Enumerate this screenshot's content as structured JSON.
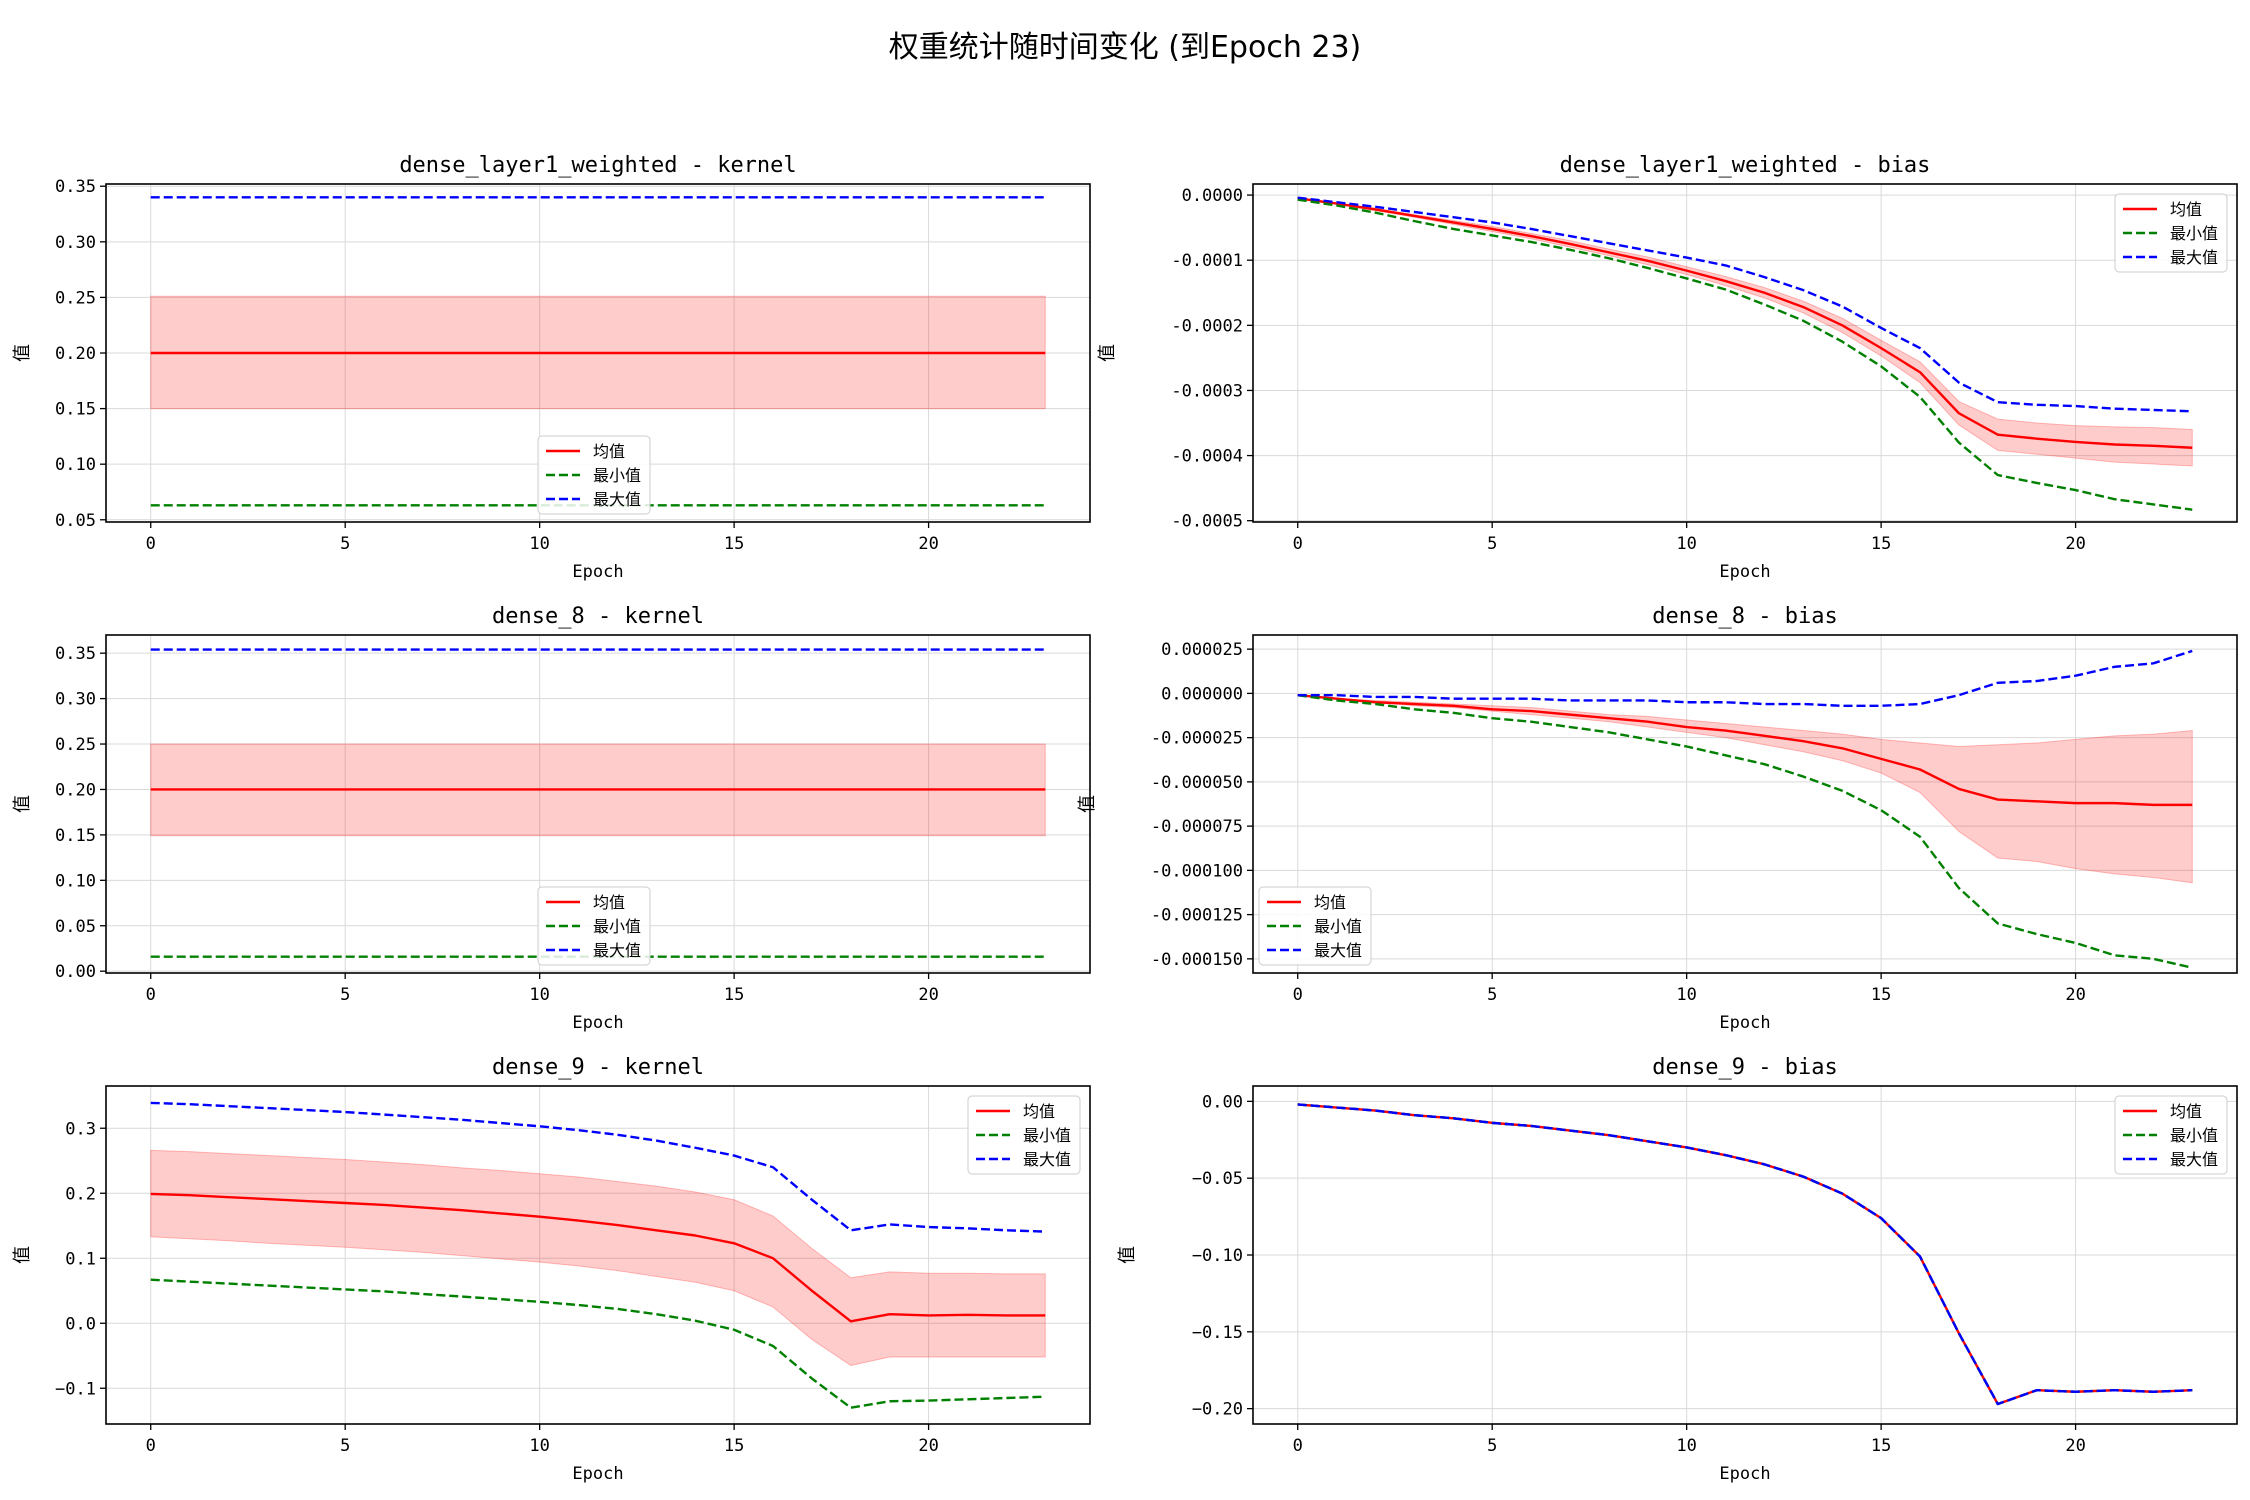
{
  "figure": {
    "suptitle": "权重统计随时间变化 (到Epoch 23)"
  },
  "colors": {
    "mean": "#ff0000",
    "min": "#008000",
    "max": "#0000ff",
    "band": "#ff0000",
    "grid": "#d9d9d9"
  },
  "chart_data": [
    {
      "type": "line",
      "title": "dense_layer1_weighted - kernel",
      "xlabel": "Epoch",
      "ylabel": "值",
      "xlim": [
        -1.15,
        24.15
      ],
      "ylim": [
        0.048,
        0.352
      ],
      "xticks": [
        0,
        5,
        10,
        15,
        20
      ],
      "yticks": [
        0.05,
        0.1,
        0.15,
        0.2,
        0.25,
        0.3,
        0.35
      ],
      "ytick_labels": [
        "0.05",
        "0.10",
        "0.15",
        "0.20",
        "0.25",
        "0.30",
        "0.35"
      ],
      "grid": true,
      "legend": "lower-center",
      "x": [
        0,
        23
      ],
      "series": [
        {
          "name": "均值",
          "style": "solid",
          "values": [
            0.2,
            0.2
          ]
        },
        {
          "name": "最小值",
          "style": "dashed",
          "values": [
            0.063,
            0.063
          ]
        },
        {
          "name": "最大值",
          "style": "dashed",
          "values": [
            0.34,
            0.34
          ]
        }
      ],
      "band": {
        "lower": [
          0.15,
          0.15
        ],
        "upper": [
          0.251,
          0.251
        ]
      }
    },
    {
      "type": "line",
      "title": "dense_layer1_weighted - bias",
      "xlabel": "Epoch",
      "ylabel": "值",
      "xlim": [
        -1.15,
        24.15
      ],
      "ylim": [
        -0.000502,
        1.7e-05
      ],
      "xticks": [
        0,
        5,
        10,
        15,
        20
      ],
      "yticks": [
        0.0,
        -0.0001,
        -0.0002,
        -0.0003,
        -0.0004,
        -0.0005
      ],
      "ytick_labels": [
        "0.0000",
        "-0.0001",
        "-0.0002",
        "-0.0003",
        "-0.0004",
        "-0.0005"
      ],
      "grid": true,
      "legend": "upper-right",
      "x": [
        0,
        1,
        2,
        3,
        4,
        5,
        6,
        7,
        8,
        9,
        10,
        11,
        12,
        13,
        14,
        15,
        16,
        17,
        18,
        19,
        20,
        21,
        22,
        23
      ],
      "series": [
        {
          "name": "均值",
          "style": "solid",
          "values": [
            -5e-06,
            -1.3e-05,
            -2.2e-05,
            -3.2e-05,
            -4.2e-05,
            -5.2e-05,
            -6.3e-05,
            -7.5e-05,
            -8.8e-05,
            -0.000101,
            -0.000116,
            -0.000132,
            -0.00015,
            -0.000172,
            -0.0002,
            -0.000235,
            -0.000272,
            -0.000335,
            -0.000368,
            -0.000374,
            -0.000379,
            -0.000383,
            -0.000385,
            -0.000388
          ]
        },
        {
          "name": "最小值",
          "style": "dashed",
          "values": [
            -7e-06,
            -1.6e-05,
            -2.7e-05,
            -4e-05,
            -5.2e-05,
            -6.2e-05,
            -7.2e-05,
            -8.4e-05,
            -9.7e-05,
            -0.000112,
            -0.000128,
            -0.000145,
            -0.000168,
            -0.000193,
            -0.000225,
            -0.000263,
            -0.00031,
            -0.00038,
            -0.00043,
            -0.000442,
            -0.000453,
            -0.000467,
            -0.000475,
            -0.000483
          ]
        },
        {
          "name": "最大值",
          "style": "dashed",
          "values": [
            -4e-06,
            -1.1e-05,
            -1.8e-05,
            -2.6e-05,
            -3.4e-05,
            -4.2e-05,
            -5.2e-05,
            -6.3e-05,
            -7.4e-05,
            -8.5e-05,
            -9.6e-05,
            -0.000108,
            -0.000126,
            -0.000146,
            -0.000171,
            -0.000204,
            -0.000235,
            -0.000288,
            -0.000318,
            -0.000322,
            -0.000324,
            -0.000328,
            -0.00033,
            -0.000332
          ]
        }
      ],
      "band": {
        "lower": [
          -6e-06,
          -1.4e-05,
          -2.4e-05,
          -3.4e-05,
          -4.5e-05,
          -5.6e-05,
          -6.7e-05,
          -8e-05,
          -9.3e-05,
          -0.000107,
          -0.000122,
          -0.000139,
          -0.000158,
          -0.000181,
          -0.000211,
          -0.000247,
          -0.000288,
          -0.000353,
          -0.000392,
          -0.000398,
          -0.000404,
          -0.00041,
          -0.000413,
          -0.000416
        ],
        "upper": [
          -4e-06,
          -1.2e-05,
          -2e-05,
          -3e-05,
          -3.9e-05,
          -4.8e-05,
          -5.9e-05,
          -7e-05,
          -8.3e-05,
          -9.5e-05,
          -0.00011,
          -0.000125,
          -0.000142,
          -0.000163,
          -0.000189,
          -0.000223,
          -0.000256,
          -0.000317,
          -0.000344,
          -0.00035,
          -0.000354,
          -0.000356,
          -0.000357,
          -0.00036
        ]
      }
    },
    {
      "type": "line",
      "title": "dense_8 - kernel",
      "xlabel": "Epoch",
      "ylabel": "值",
      "xlim": [
        -1.15,
        24.15
      ],
      "ylim": [
        -0.002,
        0.37
      ],
      "xticks": [
        0,
        5,
        10,
        15,
        20
      ],
      "yticks": [
        0.0,
        0.05,
        0.1,
        0.15,
        0.2,
        0.25,
        0.3,
        0.35
      ],
      "ytick_labels": [
        "0.00",
        "0.05",
        "0.10",
        "0.15",
        "0.20",
        "0.25",
        "0.30",
        "0.35"
      ],
      "grid": true,
      "legend": "lower-center",
      "x": [
        0,
        23
      ],
      "series": [
        {
          "name": "均值",
          "style": "solid",
          "values": [
            0.2,
            0.2
          ]
        },
        {
          "name": "最小值",
          "style": "dashed",
          "values": [
            0.016,
            0.016
          ]
        },
        {
          "name": "最大值",
          "style": "dashed",
          "values": [
            0.354,
            0.354
          ]
        }
      ],
      "band": {
        "lower": [
          0.149,
          0.149
        ],
        "upper": [
          0.25,
          0.25
        ]
      }
    },
    {
      "type": "line",
      "title": "dense_8 - bias",
      "xlabel": "Epoch",
      "ylabel": "值",
      "xlim": [
        -1.15,
        24.15
      ],
      "ylim": [
        -0.000158,
        3.3e-05
      ],
      "xticks": [
        0,
        5,
        10,
        15,
        20
      ],
      "yticks": [
        2.5e-05,
        0.0,
        -2.5e-05,
        -5e-05,
        -7.5e-05,
        -0.0001,
        -0.000125,
        -0.00015
      ],
      "ytick_labels": [
        "0.000025",
        "0.000000",
        "-0.000025",
        "-0.000050",
        "-0.000075",
        "-0.000100",
        "-0.000125",
        "-0.000150"
      ],
      "grid": true,
      "legend": "lower-left",
      "x": [
        0,
        1,
        2,
        3,
        4,
        5,
        6,
        7,
        8,
        9,
        10,
        11,
        12,
        13,
        14,
        15,
        16,
        17,
        18,
        19,
        20,
        21,
        22,
        23
      ],
      "series": [
        {
          "name": "均值",
          "style": "solid",
          "values": [
            -1e-06,
            -3e-06,
            -5e-06,
            -6e-06,
            -7e-06,
            -9e-06,
            -1e-05,
            -1.2e-05,
            -1.4e-05,
            -1.6e-05,
            -1.9e-05,
            -2.1e-05,
            -2.4e-05,
            -2.7e-05,
            -3.1e-05,
            -3.7e-05,
            -4.3e-05,
            -5.4e-05,
            -6e-05,
            -6.1e-05,
            -6.2e-05,
            -6.2e-05,
            -6.3e-05,
            -6.3e-05
          ]
        },
        {
          "name": "最小值",
          "style": "dashed",
          "values": [
            -1e-06,
            -4e-06,
            -6e-06,
            -9e-06,
            -1.1e-05,
            -1.4e-05,
            -1.6e-05,
            -1.9e-05,
            -2.2e-05,
            -2.6e-05,
            -3e-05,
            -3.5e-05,
            -4e-05,
            -4.7e-05,
            -5.5e-05,
            -6.6e-05,
            -8.1e-05,
            -0.00011,
            -0.00013,
            -0.000136,
            -0.000141,
            -0.000148,
            -0.00015,
            -0.000155
          ]
        },
        {
          "name": "最大值",
          "style": "dashed",
          "values": [
            -1e-06,
            -1e-06,
            -2e-06,
            -2e-06,
            -3e-06,
            -3e-06,
            -3e-06,
            -4e-06,
            -4e-06,
            -4e-06,
            -5e-06,
            -5e-06,
            -6e-06,
            -6e-06,
            -7e-06,
            -7e-06,
            -6e-06,
            -1e-06,
            6e-06,
            7e-06,
            1e-05,
            1.5e-05,
            1.7e-05,
            2.4e-05
          ]
        }
      ],
      "band": {
        "lower": [
          -1e-06,
          -3e-06,
          -5e-06,
          -7e-06,
          -8e-06,
          -1e-05,
          -1.2e-05,
          -1.4e-05,
          -1.6e-05,
          -1.9e-05,
          -2.2e-05,
          -2.5e-05,
          -2.9e-05,
          -3.3e-05,
          -3.8e-05,
          -4.5e-05,
          -5.6e-05,
          -7.8e-05,
          -9.3e-05,
          -9.5e-05,
          -9.9e-05,
          -0.000102,
          -0.000104,
          -0.000107
        ],
        "upper": [
          -1e-06,
          -3e-06,
          -4e-06,
          -5e-06,
          -6e-06,
          -7e-06,
          -8e-06,
          -1e-05,
          -1.2e-05,
          -1.3e-05,
          -1.5e-05,
          -1.7e-05,
          -1.9e-05,
          -2.1e-05,
          -2.3e-05,
          -2.6e-05,
          -2.8e-05,
          -3e-05,
          -2.9e-05,
          -2.8e-05,
          -2.6e-05,
          -2.4e-05,
          -2.3e-05,
          -2.1e-05
        ]
      }
    },
    {
      "type": "line",
      "title": "dense_9 - kernel",
      "xlabel": "Epoch",
      "ylabel": "值",
      "xlim": [
        -1.15,
        24.15
      ],
      "ylim": [
        -0.155,
        0.365
      ],
      "xticks": [
        0,
        5,
        10,
        15,
        20
      ],
      "yticks": [
        -0.1,
        0.0,
        0.1,
        0.2,
        0.3
      ],
      "ytick_labels": [
        "−0.1",
        "0.0",
        "0.1",
        "0.2",
        "0.3"
      ],
      "grid": true,
      "legend": "upper-right",
      "x": [
        0,
        1,
        2,
        3,
        4,
        5,
        6,
        7,
        8,
        9,
        10,
        11,
        12,
        13,
        14,
        15,
        16,
        17,
        18,
        19,
        20,
        21,
        22,
        23
      ],
      "series": [
        {
          "name": "均值",
          "style": "solid",
          "values": [
            0.199,
            0.197,
            0.194,
            0.191,
            0.188,
            0.185,
            0.182,
            0.178,
            0.174,
            0.169,
            0.164,
            0.158,
            0.151,
            0.143,
            0.135,
            0.123,
            0.1,
            0.05,
            0.003,
            0.014,
            0.012,
            0.013,
            0.012,
            0.012
          ]
        },
        {
          "name": "最小值",
          "style": "dashed",
          "values": [
            0.067,
            0.064,
            0.061,
            0.058,
            0.055,
            0.052,
            0.049,
            0.045,
            0.041,
            0.037,
            0.033,
            0.028,
            0.022,
            0.014,
            0.004,
            -0.01,
            -0.035,
            -0.085,
            -0.13,
            -0.12,
            -0.119,
            -0.117,
            -0.115,
            -0.113
          ]
        },
        {
          "name": "最大值",
          "style": "dashed",
          "values": [
            0.339,
            0.337,
            0.334,
            0.331,
            0.328,
            0.325,
            0.321,
            0.317,
            0.313,
            0.308,
            0.303,
            0.297,
            0.29,
            0.281,
            0.27,
            0.258,
            0.24,
            0.19,
            0.143,
            0.152,
            0.148,
            0.146,
            0.143,
            0.141
          ]
        }
      ],
      "band": {
        "lower": [
          0.133,
          0.13,
          0.127,
          0.123,
          0.12,
          0.117,
          0.113,
          0.109,
          0.104,
          0.099,
          0.094,
          0.088,
          0.081,
          0.072,
          0.063,
          0.05,
          0.025,
          -0.025,
          -0.065,
          -0.052,
          -0.052,
          -0.052,
          -0.052,
          -0.052
        ],
        "upper": [
          0.266,
          0.264,
          0.261,
          0.258,
          0.255,
          0.252,
          0.248,
          0.244,
          0.239,
          0.235,
          0.23,
          0.225,
          0.218,
          0.211,
          0.202,
          0.19,
          0.165,
          0.115,
          0.07,
          0.079,
          0.077,
          0.077,
          0.076,
          0.076
        ]
      }
    },
    {
      "type": "line",
      "title": "dense_9 - bias",
      "xlabel": "Epoch",
      "ylabel": "值",
      "xlim": [
        -1.15,
        24.15
      ],
      "ylim": [
        -0.21,
        0.01
      ],
      "xticks": [
        0,
        5,
        10,
        15,
        20
      ],
      "yticks": [
        0.0,
        -0.05,
        -0.1,
        -0.15,
        -0.2
      ],
      "ytick_labels": [
        "0.00",
        "−0.05",
        "−0.10",
        "−0.15",
        "−0.20"
      ],
      "grid": true,
      "legend": "upper-right",
      "x": [
        0,
        1,
        2,
        3,
        4,
        5,
        6,
        7,
        8,
        9,
        10,
        11,
        12,
        13,
        14,
        15,
        16,
        17,
        18,
        19,
        20,
        21,
        22,
        23
      ],
      "series": [
        {
          "name": "均值",
          "style": "solid",
          "values": [
            -0.002,
            -0.004,
            -0.006,
            -0.009,
            -0.011,
            -0.014,
            -0.016,
            -0.019,
            -0.022,
            -0.026,
            -0.03,
            -0.035,
            -0.041,
            -0.049,
            -0.06,
            -0.076,
            -0.101,
            -0.151,
            -0.197,
            -0.188,
            -0.189,
            -0.188,
            -0.189,
            -0.188
          ]
        },
        {
          "name": "最小值",
          "style": "dashed",
          "values": [
            -0.002,
            -0.004,
            -0.006,
            -0.009,
            -0.011,
            -0.014,
            -0.016,
            -0.019,
            -0.022,
            -0.026,
            -0.03,
            -0.035,
            -0.041,
            -0.049,
            -0.06,
            -0.076,
            -0.101,
            -0.151,
            -0.197,
            -0.188,
            -0.189,
            -0.188,
            -0.189,
            -0.188
          ]
        },
        {
          "name": "最大值",
          "style": "dashed",
          "values": [
            -0.002,
            -0.004,
            -0.006,
            -0.009,
            -0.011,
            -0.014,
            -0.016,
            -0.019,
            -0.022,
            -0.026,
            -0.03,
            -0.035,
            -0.041,
            -0.049,
            -0.06,
            -0.076,
            -0.101,
            -0.151,
            -0.197,
            -0.188,
            -0.189,
            -0.188,
            -0.189,
            -0.188
          ]
        }
      ],
      "band": null
    }
  ]
}
